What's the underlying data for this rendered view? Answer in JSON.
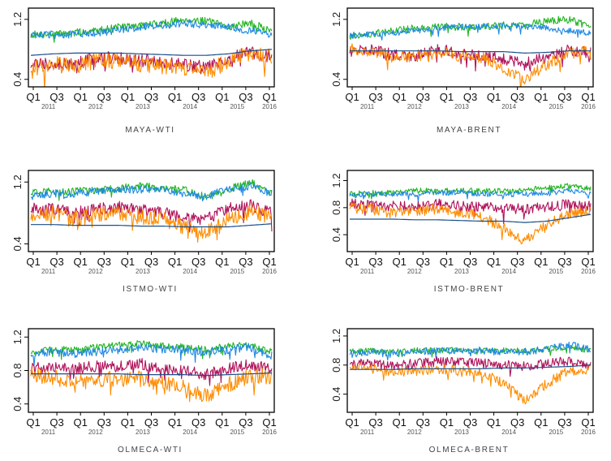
{
  "colors": {
    "green": "#22b422",
    "blue": "#1e88e5",
    "magenta": "#b0125a",
    "orange": "#ff8c00",
    "trend": "#1a4f8a"
  },
  "chart_data": [
    {
      "type": "line",
      "title": "MAYA-WTI",
      "ylim": [
        0.3,
        1.35
      ],
      "yticks": [
        "0.4",
        "1.2"
      ],
      "xtick_labels": [
        "Q1",
        "Q3",
        "Q1",
        "Q3",
        "Q1",
        "Q3",
        "Q1",
        "Q3",
        "Q1",
        "Q3",
        "Q1"
      ],
      "year_labels": [
        "2011",
        "2012",
        "2013",
        "2014",
        "2015",
        "2016"
      ],
      "series": [
        {
          "name": "green",
          "base": [
            1.0,
            1.0,
            1.02,
            1.05,
            1.1,
            1.12,
            1.15,
            1.2,
            1.18,
            1.1,
            1.15,
            1.05
          ],
          "noise": 0.05
        },
        {
          "name": "blue",
          "base": [
            0.98,
            1.0,
            1.0,
            1.02,
            1.05,
            1.1,
            1.12,
            1.15,
            1.12,
            1.1,
            1.05,
            1.0
          ],
          "noise": 0.05
        },
        {
          "name": "magenta",
          "base": [
            0.6,
            0.62,
            0.6,
            0.7,
            0.68,
            0.65,
            0.62,
            0.6,
            0.55,
            0.68,
            0.75,
            0.7
          ],
          "noise": 0.09
        },
        {
          "name": "orange",
          "base": [
            0.55,
            0.6,
            0.58,
            0.65,
            0.65,
            0.6,
            0.58,
            0.55,
            0.5,
            0.65,
            0.75,
            0.7
          ],
          "noise": 0.11
        },
        {
          "name": "trend",
          "base": [
            0.72,
            0.74,
            0.75,
            0.75,
            0.75,
            0.74,
            0.73,
            0.72,
            0.72,
            0.74,
            0.78,
            0.8
          ],
          "noise": 0.0
        }
      ]
    },
    {
      "type": "line",
      "title": "MAYA-BRENT",
      "ylim": [
        0.3,
        1.35
      ],
      "yticks": [
        "0.4",
        "1.2"
      ],
      "xtick_labels": [
        "Q1",
        "Q3",
        "Q1",
        "Q3",
        "Q1",
        "Q3",
        "Q1",
        "Q3",
        "Q1",
        "Q3",
        "Q1"
      ],
      "year_labels": [
        "2011",
        "2012",
        "2013",
        "2014",
        "2015",
        "2016"
      ],
      "series": [
        {
          "name": "green",
          "base": [
            0.98,
            1.0,
            1.05,
            1.08,
            1.1,
            1.1,
            1.1,
            1.12,
            1.12,
            1.18,
            1.2,
            1.1
          ],
          "noise": 0.05
        },
        {
          "name": "blue",
          "base": [
            0.98,
            1.0,
            1.02,
            1.05,
            1.08,
            1.1,
            1.1,
            1.12,
            1.1,
            1.08,
            1.05,
            1.02
          ],
          "noise": 0.04
        },
        {
          "name": "magenta",
          "base": [
            0.78,
            0.8,
            0.72,
            0.7,
            0.8,
            0.75,
            0.7,
            0.68,
            0.6,
            0.72,
            0.8,
            0.75
          ],
          "noise": 0.08
        },
        {
          "name": "orange",
          "base": [
            0.8,
            0.78,
            0.7,
            0.72,
            0.75,
            0.72,
            0.7,
            0.55,
            0.4,
            0.6,
            0.75,
            0.78
          ],
          "noise": 0.08
        },
        {
          "name": "trend",
          "base": [
            0.78,
            0.78,
            0.78,
            0.78,
            0.78,
            0.77,
            0.77,
            0.77,
            0.75,
            0.76,
            0.78,
            0.78
          ],
          "noise": 0.0
        }
      ]
    },
    {
      "type": "line",
      "title": "ISTMO-WTI",
      "ylim": [
        0.3,
        1.35
      ],
      "yticks": [
        "0.4",
        "1.2"
      ],
      "xtick_labels": [
        "Q1",
        "Q3",
        "Q1",
        "Q3",
        "Q1",
        "Q3",
        "Q1",
        "Q3",
        "Q1",
        "Q3",
        "Q1"
      ],
      "year_labels": [
        "2011",
        "2012",
        "2013",
        "2014",
        "2015",
        "2016"
      ],
      "series": [
        {
          "name": "green",
          "base": [
            1.05,
            1.08,
            1.08,
            1.1,
            1.12,
            1.15,
            1.12,
            1.1,
            1.0,
            1.1,
            1.2,
            1.05
          ],
          "noise": 0.05
        },
        {
          "name": "blue",
          "base": [
            1.02,
            1.05,
            1.05,
            1.08,
            1.1,
            1.1,
            1.1,
            1.05,
            1.02,
            1.1,
            1.15,
            1.05
          ],
          "noise": 0.05
        },
        {
          "name": "magenta",
          "base": [
            0.85,
            0.85,
            0.8,
            0.85,
            0.88,
            0.85,
            0.8,
            0.75,
            0.72,
            0.85,
            0.9,
            0.8
          ],
          "noise": 0.08
        },
        {
          "name": "orange",
          "base": [
            0.78,
            0.8,
            0.72,
            0.78,
            0.8,
            0.75,
            0.72,
            0.62,
            0.55,
            0.7,
            0.82,
            0.75
          ],
          "noise": 0.1
        },
        {
          "name": "trend",
          "base": [
            0.65,
            0.65,
            0.64,
            0.64,
            0.64,
            0.63,
            0.63,
            0.62,
            0.62,
            0.62,
            0.64,
            0.66
          ],
          "noise": 0.0
        }
      ]
    },
    {
      "type": "line",
      "title": "ISTMO-BRENT",
      "ylim": [
        0.15,
        1.35
      ],
      "yticks": [
        "0.4",
        "0.8",
        "1.2"
      ],
      "xtick_labels": [
        "Q1",
        "Q3",
        "Q1",
        "Q3",
        "Q1",
        "Q3",
        "Q1",
        "Q3",
        "Q1",
        "Q3",
        "Q1"
      ],
      "year_labels": [
        "2011",
        "2012",
        "2013",
        "2014",
        "2015",
        "2016"
      ],
      "series": [
        {
          "name": "green",
          "base": [
            1.0,
            1.02,
            1.02,
            1.05,
            1.05,
            1.05,
            1.05,
            1.05,
            1.05,
            1.1,
            1.12,
            1.08
          ],
          "noise": 0.04
        },
        {
          "name": "blue",
          "base": [
            0.98,
            1.0,
            1.0,
            1.0,
            1.02,
            1.02,
            1.0,
            1.0,
            1.0,
            1.02,
            1.05,
            1.0
          ],
          "noise": 0.04
        },
        {
          "name": "magenta",
          "base": [
            0.85,
            0.85,
            0.82,
            0.82,
            0.85,
            0.82,
            0.8,
            0.8,
            0.78,
            0.8,
            0.85,
            0.82
          ],
          "noise": 0.08
        },
        {
          "name": "orange",
          "base": [
            0.8,
            0.78,
            0.72,
            0.75,
            0.78,
            0.72,
            0.68,
            0.5,
            0.3,
            0.55,
            0.72,
            0.75
          ],
          "noise": 0.08
        },
        {
          "name": "trend",
          "base": [
            0.63,
            0.63,
            0.63,
            0.62,
            0.62,
            0.61,
            0.6,
            0.6,
            0.58,
            0.6,
            0.65,
            0.7
          ],
          "noise": 0.0
        }
      ]
    },
    {
      "type": "line",
      "title": "OLMECA-WTI",
      "ylim": [
        0.3,
        1.3
      ],
      "yticks": [
        "0.4",
        "0.8",
        "1.2"
      ],
      "xtick_labels": [
        "Q1",
        "Q3",
        "Q1",
        "Q3",
        "Q1",
        "Q3",
        "Q1",
        "Q3",
        "Q1",
        "Q3",
        "Q1"
      ],
      "year_labels": [
        "2011",
        "2012",
        "2013",
        "2014",
        "2015",
        "2016"
      ],
      "series": [
        {
          "name": "green",
          "base": [
            1.02,
            1.05,
            1.05,
            1.08,
            1.1,
            1.12,
            1.1,
            1.08,
            1.05,
            1.1,
            1.1,
            1.02
          ],
          "noise": 0.04
        },
        {
          "name": "blue",
          "base": [
            1.0,
            1.02,
            1.0,
            1.02,
            1.05,
            1.08,
            1.05,
            1.05,
            1.02,
            1.05,
            1.08,
            0.98
          ],
          "noise": 0.05
        },
        {
          "name": "magenta",
          "base": [
            0.82,
            0.85,
            0.82,
            0.85,
            0.85,
            0.88,
            0.82,
            0.8,
            0.75,
            0.82,
            0.88,
            0.8
          ],
          "noise": 0.07
        },
        {
          "name": "orange",
          "base": [
            0.75,
            0.72,
            0.65,
            0.7,
            0.7,
            0.7,
            0.65,
            0.6,
            0.5,
            0.62,
            0.75,
            0.72
          ],
          "noise": 0.1
        },
        {
          "name": "trend",
          "base": [
            0.76,
            0.76,
            0.76,
            0.76,
            0.76,
            0.75,
            0.75,
            0.75,
            0.74,
            0.75,
            0.76,
            0.77
          ],
          "noise": 0.0
        }
      ]
    },
    {
      "type": "line",
      "title": "OLMECA-BRENT",
      "ylim": [
        0.15,
        1.3
      ],
      "yticks": [
        "0.4",
        "0.8",
        "1.2"
      ],
      "xtick_labels": [
        "Q1",
        "Q3",
        "Q1",
        "Q3",
        "Q1",
        "Q3",
        "Q1",
        "Q3",
        "Q1",
        "Q3",
        "Q1"
      ],
      "year_labels": [
        "2011",
        "2012",
        "2013",
        "2014",
        "2015",
        "2016"
      ],
      "series": [
        {
          "name": "green",
          "base": [
            1.0,
            1.0,
            0.98,
            1.0,
            1.0,
            1.02,
            1.0,
            1.0,
            1.0,
            1.02,
            1.05,
            1.0
          ],
          "noise": 0.04
        },
        {
          "name": "blue",
          "base": [
            0.95,
            0.98,
            0.95,
            0.98,
            1.0,
            1.0,
            1.0,
            0.98,
            0.98,
            1.02,
            1.08,
            1.02
          ],
          "noise": 0.05
        },
        {
          "name": "magenta",
          "base": [
            0.82,
            0.82,
            0.78,
            0.82,
            0.85,
            0.85,
            0.82,
            0.8,
            0.78,
            0.82,
            0.85,
            0.8
          ],
          "noise": 0.07
        },
        {
          "name": "orange",
          "base": [
            0.78,
            0.75,
            0.7,
            0.72,
            0.75,
            0.72,
            0.7,
            0.55,
            0.3,
            0.55,
            0.72,
            0.75
          ],
          "noise": 0.07
        },
        {
          "name": "trend",
          "base": [
            0.74,
            0.74,
            0.74,
            0.75,
            0.75,
            0.75,
            0.75,
            0.76,
            0.76,
            0.77,
            0.78,
            0.8
          ],
          "noise": 0.0
        }
      ]
    }
  ]
}
